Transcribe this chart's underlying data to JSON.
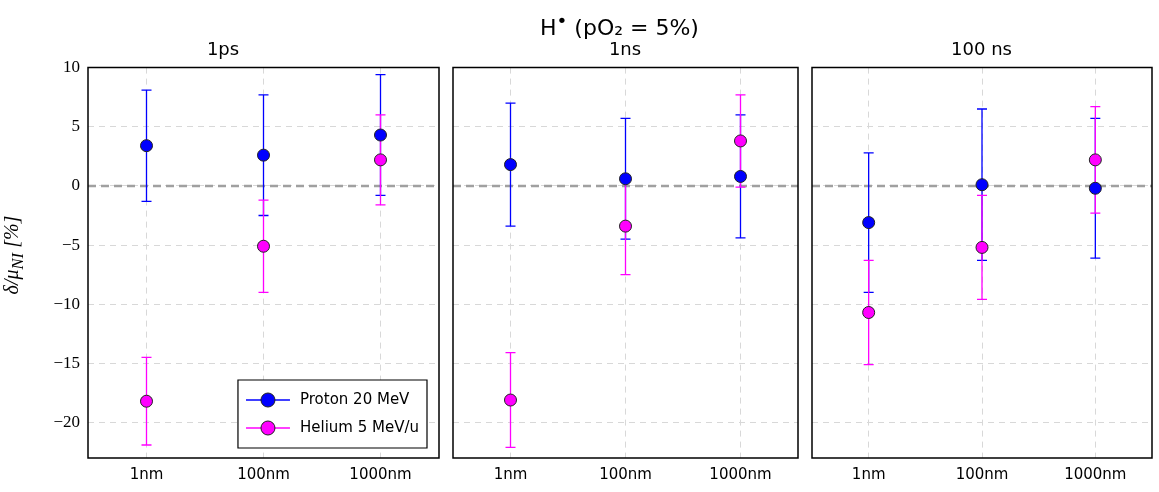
{
  "chart_data": [
    {
      "type": "scatter",
      "title": "1ps",
      "ylabel": "δ/μ$_{NI}$ [%]",
      "annotations": [
        "H$^{•}$ (pO₂ = 5%)"
      ],
      "categories": [
        "1nm",
        "100nm",
        "1000nm"
      ],
      "ylim": [
        -23,
        10
      ],
      "yticks": [
        -20,
        -15,
        -10,
        -5,
        0,
        5,
        10
      ],
      "grid": true,
      "marker": "circle",
      "legend": "bottom right",
      "ref_lines": [
        {
          "axis": "y",
          "value": 0,
          "color": "#a0a0a0",
          "line_style": "dashed"
        }
      ],
      "series": [
        {
          "name": "Proton 20 MeV",
          "color": "#0000ff",
          "values": [
            3.4,
            2.6,
            4.3
          ],
          "errors": [
            4.7,
            5.1,
            5.1
          ]
        },
        {
          "name": "Helium 5 MeV/u",
          "color": "#ff00ff",
          "values": [
            -18.2,
            -5.1,
            2.2
          ],
          "errors": [
            3.7,
            3.9,
            3.8
          ]
        }
      ]
    },
    {
      "type": "scatter",
      "title": "1ns",
      "categories": [
        "1nm",
        "100nm",
        "1000nm"
      ],
      "ylim": [
        -23,
        10
      ],
      "yticks": [
        -20,
        -15,
        -10,
        -5,
        0,
        5,
        10
      ],
      "grid": true,
      "marker": "circle",
      "tick_labels": "x",
      "ref_lines": [
        {
          "axis": "y",
          "value": 0,
          "color": "#a0a0a0",
          "line_style": "dashed"
        }
      ],
      "series": [
        {
          "color": "#0000ff",
          "values": [
            1.8,
            0.6,
            0.8
          ],
          "errors": [
            5.2,
            5.1,
            5.2
          ]
        },
        {
          "color": "#ff00ff",
          "values": [
            -18.1,
            -3.4,
            3.8
          ],
          "errors": [
            4.0,
            4.1,
            3.9
          ]
        }
      ]
    },
    {
      "type": "scatter",
      "title": "100 ns",
      "categories": [
        "1nm",
        "100nm",
        "1000nm"
      ],
      "ylim": [
        -23,
        10
      ],
      "yticks": [
        -20,
        -15,
        -10,
        -5,
        0,
        5,
        10
      ],
      "grid": true,
      "marker": "circle",
      "tick_labels": "x",
      "ref_lines": [
        {
          "axis": "y",
          "value": 0,
          "color": "#a0a0a0",
          "line_style": "dashed"
        }
      ],
      "series": [
        {
          "color": "#0000ff",
          "values": [
            -3.1,
            0.1,
            -0.2
          ],
          "errors": [
            5.9,
            6.4,
            5.9
          ]
        },
        {
          "color": "#ff00ff",
          "values": [
            -10.7,
            -5.2,
            2.2
          ],
          "errors": [
            4.4,
            4.4,
            4.5
          ]
        }
      ]
    }
  ]
}
